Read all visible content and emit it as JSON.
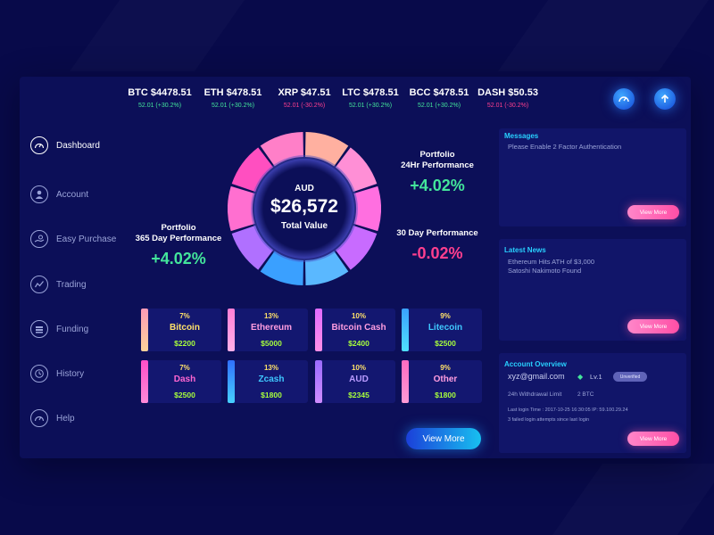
{
  "ticker": [
    {
      "name": "BTC $4478.51",
      "change": "52.01 (+30.2%)",
      "trend": "up"
    },
    {
      "name": "ETH $478.51",
      "change": "52.01 (+30.2%)",
      "trend": "up"
    },
    {
      "name": "XRP $47.51",
      "change": "52.01 (-30.2%)",
      "trend": "down"
    },
    {
      "name": "LTC $478.51",
      "change": "52.01 (+30.2%)",
      "trend": "up"
    },
    {
      "name": "BCC $478.51",
      "change": "52.01 (+30.2%)",
      "trend": "up"
    },
    {
      "name": "DASH $50.53",
      "change": "52.01 (-30.2%)",
      "trend": "down"
    }
  ],
  "top_icons": [
    "speedometer-icon",
    "upload-icon"
  ],
  "sidebar": {
    "items": [
      {
        "label": "Dashboard",
        "icon": "speedometer-icon",
        "active": true
      },
      {
        "label": "Account",
        "icon": "user-icon"
      },
      {
        "label": "Easy Purchase",
        "icon": "hand-coin-icon"
      },
      {
        "label": "Trading",
        "icon": "trend-chart-icon"
      },
      {
        "label": "Funding",
        "icon": "funding-icon"
      },
      {
        "label": "History",
        "icon": "clock-icon"
      },
      {
        "label": "Help",
        "icon": "help-icon"
      }
    ]
  },
  "portfolio": {
    "currency": "AUD",
    "value": "$26,572",
    "value_label": "Total Value",
    "perf_24h": {
      "label_line1": "Portfolio",
      "label_line2": "24Hr Performance",
      "value": "+4.02%"
    },
    "perf_30d": {
      "label": "30 Day Performance",
      "value": "-0.02%"
    },
    "perf_365d": {
      "label_line1": "Portfolio",
      "label_line2": "365 Day Performance",
      "value": "+4.02%"
    }
  },
  "assets": [
    {
      "pct": "7%",
      "name": "Bitcoin",
      "price": "$2200",
      "name_color": "#ffe16a",
      "stripe": [
        "#ff9bb7",
        "#ffd39a"
      ]
    },
    {
      "pct": "13%",
      "name": "Ethereum",
      "price": "$5000",
      "name_color": "#ff9de0",
      "stripe": [
        "#ff7fd6",
        "#ffb0e8"
      ]
    },
    {
      "pct": "10%",
      "name": "Bitcoin Cash",
      "price": "$2400",
      "name_color": "#ff9de0",
      "stripe": [
        "#e16bff",
        "#ff8fe6"
      ]
    },
    {
      "pct": "9%",
      "name": "Litecoin",
      "price": "$2500",
      "name_color": "#3fc8ff",
      "stripe": [
        "#3aa0ff",
        "#4fe0ff"
      ]
    },
    {
      "pct": "7%",
      "name": "Dash",
      "price": "$2500",
      "name_color": "#ff66d2",
      "stripe": [
        "#ff4fc8",
        "#ff8ad8"
      ]
    },
    {
      "pct": "13%",
      "name": "Zcash",
      "price": "$1800",
      "name_color": "#3fc8ff",
      "stripe": [
        "#3070ff",
        "#46d0ff"
      ]
    },
    {
      "pct": "10%",
      "name": "AUD",
      "price": "$2345",
      "name_color": "#b99bff",
      "stripe": [
        "#9a6bff",
        "#d08cff"
      ]
    },
    {
      "pct": "9%",
      "name": "Other",
      "price": "$1800",
      "name_color": "#ff9de0",
      "stripe": [
        "#ff6bc0",
        "#ff9ad6"
      ]
    }
  ],
  "view_more": "View More",
  "messages": {
    "title": "Messages",
    "text": "Please Enable 2 Factor Authentication",
    "button": "View More"
  },
  "news": {
    "title": "Latest News",
    "line1": "Ethereum Hits ATH of $3,000",
    "line2": "Satoshi Nakimoto Found",
    "button": "View More"
  },
  "account": {
    "title": "Account Overview",
    "email": "xyz@gmail.com",
    "level": "Lv.1",
    "status": "Unverified",
    "withdraw_label": "24h Withdrawal Limit",
    "withdraw_value": "2 BTC",
    "last_login": "Last login Time : 2017-10-25 16:30:05   IP: 59.100.29.24",
    "failed": "3 failed login attempts since last login",
    "button": "View More"
  },
  "colors": {
    "up": "#43e59b",
    "down": "#ff3f8e",
    "price": "#a8ff3c",
    "pct": "#ffe16a"
  }
}
